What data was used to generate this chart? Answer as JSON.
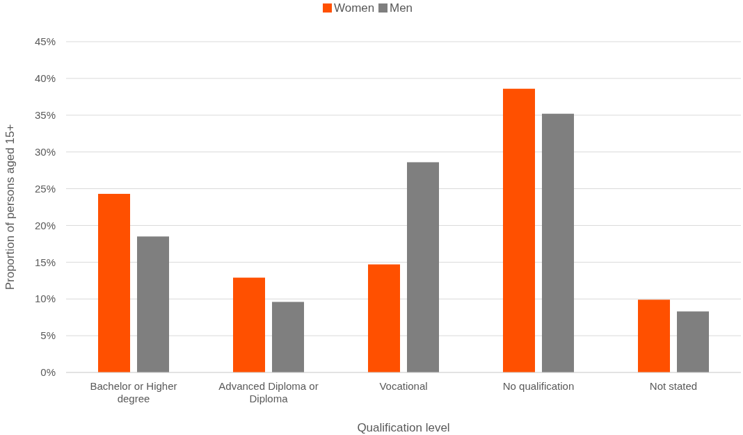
{
  "chart_data": {
    "type": "bar",
    "xlabel": "Qualification level",
    "ylabel": "Proportion of persons aged 15+",
    "categories": [
      "Bachelor or Higher degree",
      "Advanced Diploma or Diploma",
      "Vocational",
      "No qualification",
      "Not stated"
    ],
    "series": [
      {
        "name": "Women",
        "color": "#ff5000",
        "values": [
          24.3,
          12.9,
          14.7,
          38.6,
          9.9
        ]
      },
      {
        "name": "Men",
        "color": "#7f7f7f",
        "values": [
          18.5,
          9.6,
          28.6,
          35.2,
          8.3
        ]
      }
    ],
    "ylim": [
      0,
      45
    ],
    "yticks": [
      {
        "value": 0,
        "label": "0%"
      },
      {
        "value": 5,
        "label": "5%"
      },
      {
        "value": 10,
        "label": "10%"
      },
      {
        "value": 15,
        "label": "15%"
      },
      {
        "value": 20,
        "label": "20%"
      },
      {
        "value": 25,
        "label": "25%"
      },
      {
        "value": 30,
        "label": "30%"
      },
      {
        "value": 35,
        "label": "35%"
      },
      {
        "value": 40,
        "label": "40%"
      },
      {
        "value": 45,
        "label": "45%"
      }
    ],
    "grid": "y",
    "legend": "top"
  }
}
